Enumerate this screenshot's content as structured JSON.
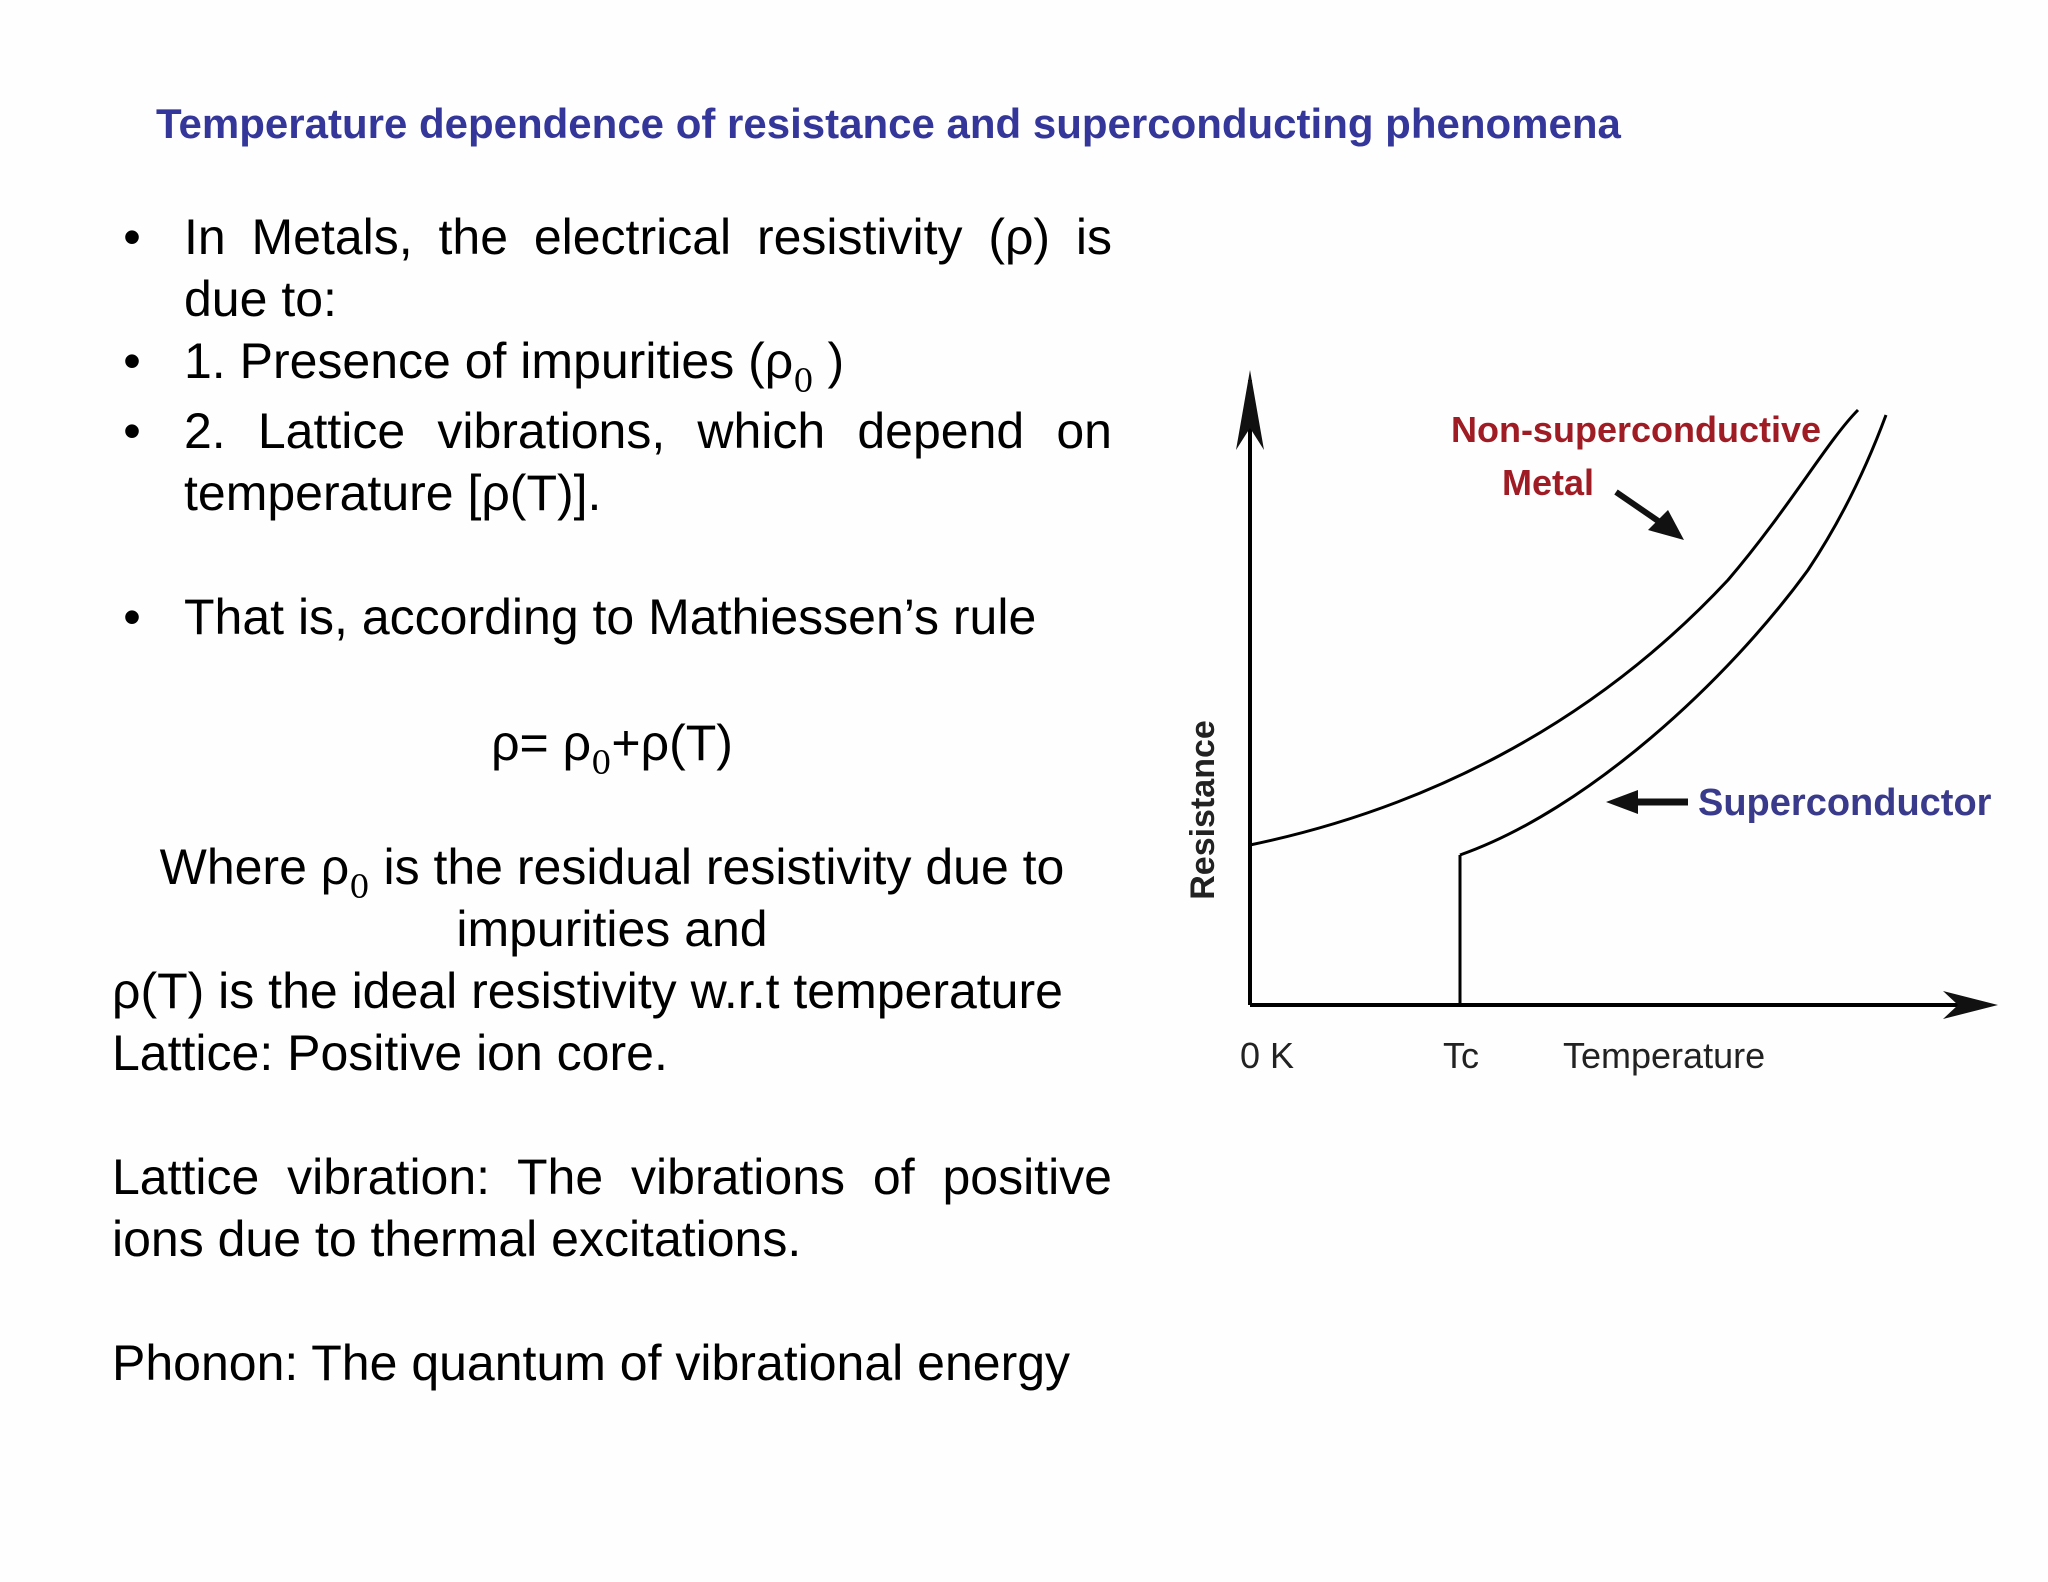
{
  "slide": {
    "title": "Temperature dependence of resistance and superconducting phenomena",
    "title_color": "#34369a"
  },
  "content": {
    "bullet_symbol": "•",
    "bullets": [
      {
        "text": "In Metals, the electrical resistivity (ρ) is due to:"
      },
      {
        "text_pre": "1. Presence of impurities (ρ",
        "sub": "0",
        "text_post": " )"
      },
      {
        "text": "2. Lattice vibrations, which depend on temperature [ρ(T)]."
      },
      {
        "text": "That is, according to Mathiessen’s rule"
      }
    ],
    "formula": {
      "pre": "ρ= ρ",
      "sub": "0",
      "post": "+ρ(T)"
    },
    "where": {
      "pre": "Where ρ",
      "sub": "0",
      "post": " is the residual resistivity due to",
      "line2": "impurities and"
    },
    "ideal_line": "ρ(T) is the ideal resistivity w.r.t temperature",
    "lattice": "Lattice:  Positive ion core.",
    "lattice_vibration": "Lattice vibration: The vibrations of positive ions due to thermal excitations.",
    "phonon": "Phonon: The quantum of vibrational energy"
  },
  "diagram": {
    "y_axis_label": "Resistance",
    "x_axis_label": "Temperature",
    "x_origin_label": "0 K",
    "x_tc_label": "Tc",
    "label_metal_line1": "Non-superconductive",
    "label_metal_line2": "Metal",
    "label_superconductor": "Superconductor",
    "metal_label_color": "#a01c24",
    "superconductor_label_color": "#3a3a8c",
    "curve_color": "#000000"
  }
}
